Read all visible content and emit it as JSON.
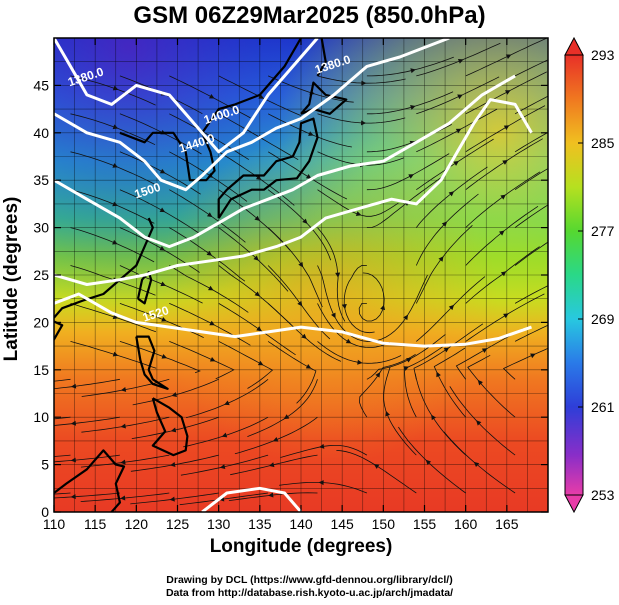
{
  "title": "GSM 06Z29Mar2025 (850.0hPa)",
  "credits": {
    "line1": "Drawing by DCL (https://www.gfd-dennou.org/library/dcl/)",
    "line2": "Data from http://database.rish.kyoto-u.ac.jp/arch/jmadata/"
  },
  "map": {
    "xlabel": "Longitude (degrees)",
    "ylabel": "Latitude  (degrees)",
    "lon_range": [
      110,
      170
    ],
    "lat_range": [
      0,
      50
    ],
    "lon_ticks": [
      110,
      115,
      120,
      125,
      130,
      135,
      140,
      145,
      150,
      155,
      160,
      165
    ],
    "lat_ticks": [
      0,
      5,
      10,
      15,
      20,
      25,
      30,
      35,
      40,
      45
    ],
    "contour_labels": [
      {
        "text": "1380.0",
        "lon": 114.0,
        "lat": 45.5
      },
      {
        "text": "1400.0",
        "lon": 130.5,
        "lat": 41.5
      },
      {
        "text": "1440.0",
        "lon": 127.5,
        "lat": 38.5
      },
      {
        "text": "1380.0",
        "lon": 144.0,
        "lat": 46.8
      },
      {
        "text": "1500",
        "lon": 121.5,
        "lat": 33.5
      },
      {
        "text": "1520",
        "lon": 122.5,
        "lat": 20.5
      }
    ],
    "colorbar": {
      "ticks": [
        253,
        261,
        269,
        277,
        285,
        293
      ],
      "min": 253,
      "max": 293
    }
  }
}
